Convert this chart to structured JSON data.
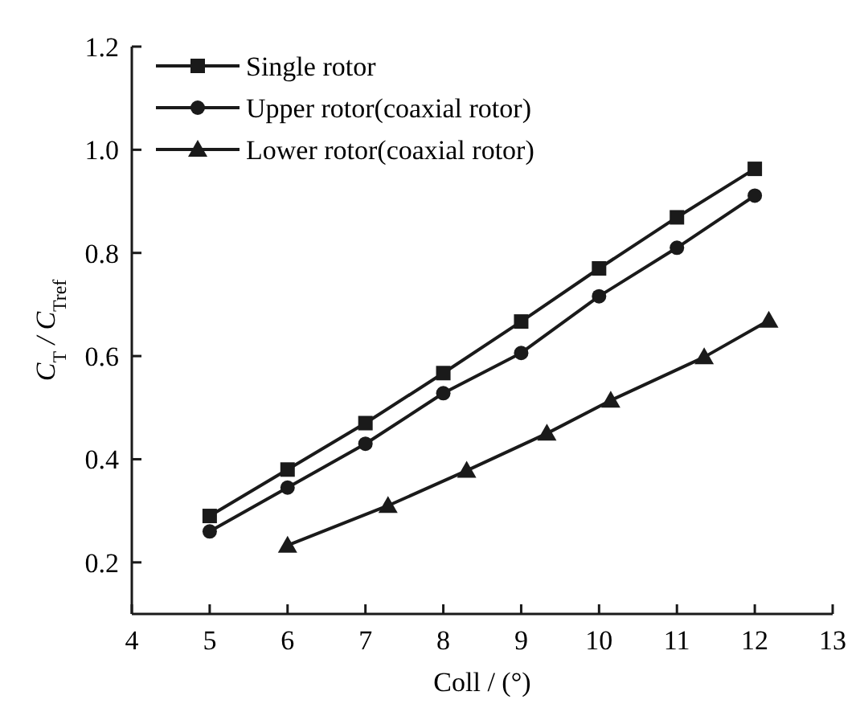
{
  "chart_data": {
    "type": "line",
    "xlabel": "Coll / (°)",
    "ylabel": "C$_{T}$ / C$_{Tref}$",
    "xlim": [
      4,
      13
    ],
    "xticks": [
      4,
      5,
      6,
      7,
      8,
      9,
      10,
      11,
      12,
      13
    ],
    "ylim": [
      0.1,
      1.2
    ],
    "yticks": [
      0.2,
      0.4,
      0.6,
      0.8,
      {
        "value": 1,
        "label": "1.0"
      },
      1.2
    ],
    "legend": "top left",
    "grid": false,
    "line_style": "solid",
    "series": [
      {
        "name": "Single rotor",
        "color": "#1a1a1a",
        "marker": "square",
        "x": [
          5,
          6,
          7,
          8,
          9,
          10,
          11,
          12
        ],
        "values": [
          0.29,
          0.38,
          0.47,
          0.567,
          0.667,
          0.77,
          0.869,
          0.963
        ]
      },
      {
        "name": "Upper rotor(coaxial rotor)",
        "color": "#1a1a1a",
        "marker": "circle",
        "x": [
          5,
          6,
          7,
          8,
          9,
          10,
          11,
          12
        ],
        "values": [
          0.26,
          0.345,
          0.43,
          0.528,
          0.606,
          0.716,
          0.81,
          0.911
        ]
      },
      {
        "name": "Lower rotor(coaxial rotor)",
        "color": "#1a1a1a",
        "marker": "triangle",
        "x": [
          6.0,
          7.29,
          8.3,
          9.33,
          10.15,
          11.35,
          12.18
        ],
        "values": [
          0.233,
          0.31,
          0.378,
          0.45,
          0.514,
          0.598,
          0.669
        ]
      }
    ]
  }
}
